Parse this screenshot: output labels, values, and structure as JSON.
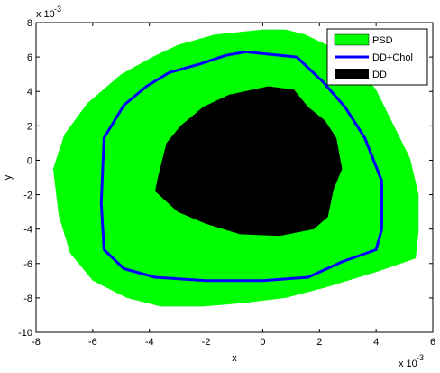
{
  "chart_data": {
    "type": "area",
    "title": "",
    "xlabel": "x",
    "ylabel": "y",
    "xlim": [
      -8,
      6
    ],
    "ylim": [
      -10,
      8
    ],
    "x_scale_label": "x 10",
    "x_scale_exp": "-3",
    "y_scale_label": "x 10",
    "y_scale_exp": "-3",
    "x_ticks": [
      -8,
      -6,
      -4,
      -2,
      0,
      2,
      4,
      6
    ],
    "y_ticks": [
      -10,
      -8,
      -6,
      -4,
      -2,
      0,
      2,
      4,
      6,
      8
    ],
    "x_tick_labels": [
      "-8",
      "-6",
      "-4",
      "-2",
      "0",
      "2",
      "4",
      "6"
    ],
    "y_tick_labels": [
      "-10",
      "-8",
      "-6",
      "-4",
      "-2",
      "0",
      "2",
      "4",
      "6",
      "8"
    ],
    "grid": false,
    "legend_position": "top-right",
    "series": [
      {
        "name": "PSD",
        "kind": "filled-region",
        "color": "#00ff00",
        "points": [
          [
            0.8,
            7.6
          ],
          [
            1.5,
            7.3
          ],
          [
            2.4,
            6.6
          ],
          [
            3.3,
            5.6
          ],
          [
            4.0,
            4.1
          ],
          [
            4.6,
            2.1
          ],
          [
            5.2,
            0.1
          ],
          [
            5.5,
            -2.0
          ],
          [
            5.5,
            -4.1
          ],
          [
            5.4,
            -5.7
          ],
          [
            4.0,
            -6.5
          ],
          [
            2.2,
            -7.4
          ],
          [
            0.8,
            -8.0
          ],
          [
            -0.7,
            -8.3
          ],
          [
            -2.1,
            -8.5
          ],
          [
            -3.6,
            -8.5
          ],
          [
            -4.8,
            -8.0
          ],
          [
            -6.0,
            -7.0
          ],
          [
            -6.8,
            -5.4
          ],
          [
            -7.2,
            -3.2
          ],
          [
            -7.4,
            -0.5
          ],
          [
            -7.0,
            1.5
          ],
          [
            -6.2,
            3.3
          ],
          [
            -5.0,
            5.0
          ],
          [
            -3.9,
            6.0
          ],
          [
            -3.0,
            6.7
          ],
          [
            -1.7,
            7.3
          ],
          [
            0.0,
            7.6
          ]
        ]
      },
      {
        "name": "DD+Chol",
        "kind": "line",
        "color": "#0000ff",
        "points": [
          [
            -0.6,
            6.3
          ],
          [
            1.2,
            6.0
          ],
          [
            2.1,
            4.6
          ],
          [
            2.9,
            3.1
          ],
          [
            3.6,
            1.3
          ],
          [
            4.2,
            -1.2
          ],
          [
            4.2,
            -4.0
          ],
          [
            4.0,
            -5.2
          ],
          [
            2.8,
            -5.9
          ],
          [
            1.6,
            -6.8
          ],
          [
            0.0,
            -7.0
          ],
          [
            -2.0,
            -7.0
          ],
          [
            -3.8,
            -6.8
          ],
          [
            -4.9,
            -6.3
          ],
          [
            -5.6,
            -5.2
          ],
          [
            -5.7,
            -2.5
          ],
          [
            -5.6,
            1.3
          ],
          [
            -4.9,
            3.2
          ],
          [
            -4.1,
            4.3
          ],
          [
            -3.3,
            5.1
          ],
          [
            -2.2,
            5.6
          ],
          [
            -1.3,
            6.1
          ]
        ]
      },
      {
        "name": "DD",
        "kind": "filled-region",
        "color": "#000000",
        "points": [
          [
            0.2,
            4.3
          ],
          [
            1.1,
            4.1
          ],
          [
            1.6,
            3.1
          ],
          [
            2.2,
            2.3
          ],
          [
            2.6,
            1.3
          ],
          [
            2.8,
            -0.5
          ],
          [
            2.5,
            -1.7
          ],
          [
            2.3,
            -3.3
          ],
          [
            1.8,
            -4.0
          ],
          [
            0.6,
            -4.4
          ],
          [
            -0.8,
            -4.3
          ],
          [
            -2.0,
            -3.7
          ],
          [
            -3.0,
            -3.0
          ],
          [
            -3.8,
            -1.8
          ],
          [
            -3.7,
            -1.0
          ],
          [
            -3.4,
            1.0
          ],
          [
            -2.9,
            2.0
          ],
          [
            -2.1,
            3.1
          ],
          [
            -1.2,
            3.8
          ]
        ]
      }
    ]
  }
}
